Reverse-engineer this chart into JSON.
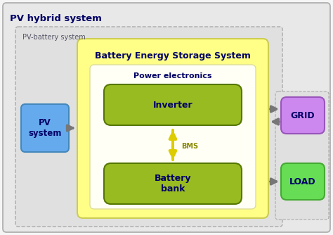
{
  "title": "PV hybrid system",
  "pv_battery_label": "PV-battery system",
  "bess_label": "Battery Energy Storage System",
  "power_elec_label": "Power electronics",
  "inverter_label": "Inverter",
  "bms_label": "BMS",
  "battery_label": "Battery\nbank",
  "pv_label": "PV\nsystem",
  "grid_label": "GRID",
  "load_label": "LOAD",
  "fig_bg": "#f5f5f5",
  "outer_bg": "#e8e8e8",
  "pv_battery_bg": "#e0e0e0",
  "bess_box_color": "#ffff88",
  "power_elec_box_color": "#fffff0",
  "inverter_box_color": "#99bb22",
  "battery_box_color": "#99bb22",
  "pv_box_color": "#66aaee",
  "grid_box_color": "#cc88ee",
  "load_box_color": "#66dd55",
  "arrow_color": "#777777",
  "bms_arrow_color": "#ddcc00",
  "title_color": "#000066",
  "bess_title_color": "#000066",
  "power_elec_color": "#000066",
  "inverter_text_color": "#000066",
  "battery_text_color": "#000066",
  "pv_text_color": "#000066",
  "grid_text_color": "#000066",
  "load_text_color": "#000066",
  "pv_battery_text_color": "#555566",
  "bms_text_color": "#888800"
}
